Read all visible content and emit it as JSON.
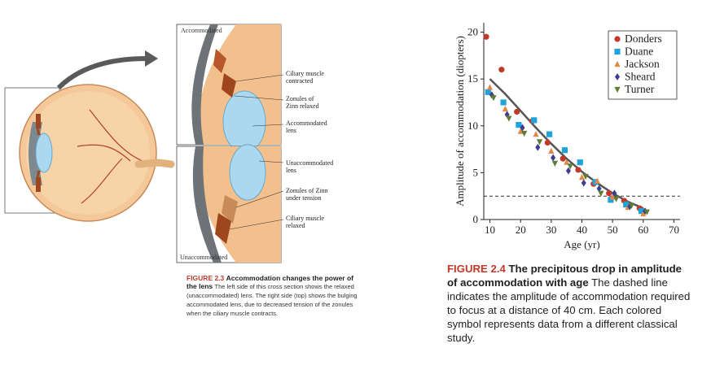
{
  "figure_2_3": {
    "label_top": "Accommodated",
    "label_bottom": "Unaccommodated",
    "annotations": {
      "ciliary_contracted": [
        "Ciliary muscle",
        "contracted"
      ],
      "zonules_relaxed": [
        "Zonules of",
        "Zinn relaxed"
      ],
      "accommodated_lens": [
        "Accommodated",
        "lens"
      ],
      "unaccommodated_lens": [
        "Unaccommodated",
        "lens"
      ],
      "zonules_tension": [
        "Zonules of Zinn",
        "under tension"
      ],
      "ciliary_relaxed": [
        "Ciliary muscle",
        "relaxed"
      ]
    },
    "caption": {
      "fig": "FIGURE 2.3",
      "head": "Accommodation changes the power of the lens",
      "body": "The left side of this cross section shows the relaxed (unaccommodated) lens. The right side (top) shows the bulging accommodated lens, due to decreased tension of the zonules when the ciliary muscle contracts."
    },
    "colors": {
      "caption_red": "#c0392b",
      "lens": "#a9d8f0",
      "eyeball": "#f5c89a",
      "muscle": "#a0461e"
    }
  },
  "figure_2_4": {
    "caption": {
      "fig": "FIGURE 2.4",
      "head": "The precipitous drop in amplitude of accommodation with age",
      "body": "The dashed line indicates the amplitude of accommodation required to focus at a distance of 40 cm. Each colored symbol represents data from a different classical study."
    }
  },
  "chart_data": {
    "type": "scatter",
    "title": "",
    "xlabel": "Age (yr)",
    "ylabel": "Amplitude of accommodation (diopters)",
    "xlim": [
      8,
      72
    ],
    "ylim": [
      0,
      21
    ],
    "xticks": [
      10,
      20,
      30,
      40,
      50,
      60,
      70
    ],
    "yticks": [
      0,
      5,
      10,
      15,
      20
    ],
    "legend_position": "top-right",
    "reference_line": {
      "y": 2.5,
      "style": "dashed"
    },
    "trend_curve": {
      "x": [
        10,
        15,
        20,
        25,
        30,
        35,
        40,
        45,
        50,
        55,
        60
      ],
      "y": [
        15.0,
        13.4,
        11.6,
        9.8,
        8.1,
        6.5,
        5.1,
        3.9,
        2.8,
        1.9,
        1.2
      ]
    },
    "series": [
      {
        "name": "Donders",
        "color": "#c0392b",
        "marker": "circle",
        "x": [
          10,
          15,
          20,
          25,
          30,
          35,
          40,
          45,
          50,
          55,
          60
        ],
        "y": [
          19.5,
          16.0,
          11.5,
          10.5,
          8.2,
          6.5,
          5.3,
          3.8,
          2.8,
          2.0,
          1.2
        ]
      },
      {
        "name": "Duane",
        "color": "#1fa3d8",
        "marker": "square",
        "x": [
          10,
          15,
          20,
          25,
          30,
          35,
          40,
          45,
          50,
          55,
          60
        ],
        "y": [
          13.6,
          12.5,
          10.1,
          10.6,
          9.1,
          7.4,
          6.1,
          4.0,
          2.1,
          1.6,
          0.9
        ]
      },
      {
        "name": "Jackson",
        "color": "#e08848",
        "marker": "triangle-up",
        "x": [
          10,
          15,
          20,
          25,
          30,
          35,
          40,
          45,
          50,
          55,
          60
        ],
        "y": [
          14.1,
          11.8,
          9.4,
          9.1,
          7.3,
          6.1,
          4.5,
          4.1,
          2.4,
          1.3,
          0.6
        ]
      },
      {
        "name": "Sheard",
        "color": "#3d3e8f",
        "marker": "diamond",
        "x": [
          10,
          15,
          20,
          25,
          30,
          35,
          40,
          45,
          50,
          55,
          60
        ],
        "y": [
          13.3,
          11.2,
          9.8,
          7.7,
          6.6,
          5.2,
          3.9,
          3.3,
          2.8,
          1.4,
          0.9
        ]
      },
      {
        "name": "Turner",
        "color": "#5e7d32",
        "marker": "triangle-down",
        "x": [
          10,
          15,
          20,
          25,
          30,
          35,
          40,
          45,
          50,
          55,
          60
        ],
        "y": [
          13.0,
          10.8,
          9.2,
          8.3,
          6.0,
          5.7,
          4.6,
          2.8,
          2.2,
          1.5,
          0.8
        ]
      }
    ]
  }
}
